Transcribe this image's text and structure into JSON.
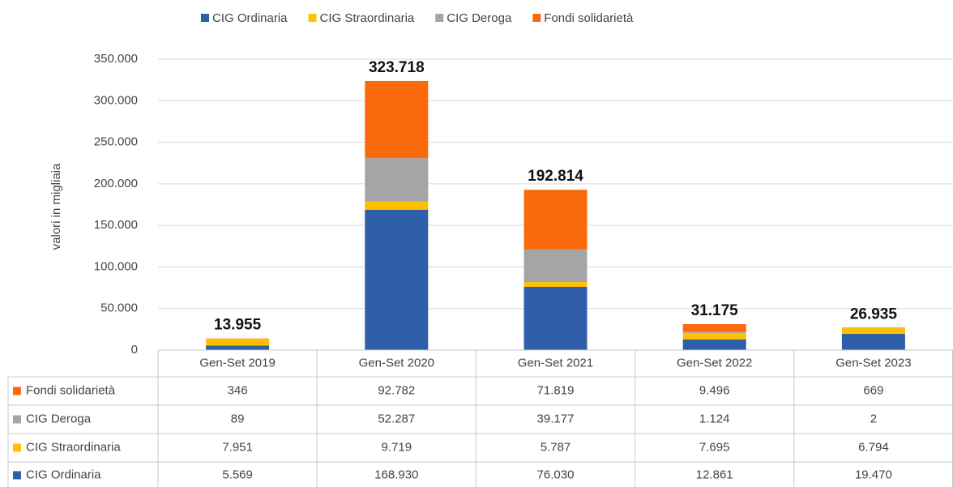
{
  "chart_data": {
    "type": "bar",
    "stacked": true,
    "y_label": "valori in migliaia",
    "categories": [
      "Gen-Set 2019",
      "Gen-Set 2020",
      "Gen-Set 2021",
      "Gen-Set 2022",
      "Gen-Set 2023"
    ],
    "series": [
      {
        "name": "CIG Ordinaria",
        "color": "#2e5fa8",
        "values": [
          5569,
          168930,
          76030,
          12861,
          19470
        ],
        "value_labels": [
          "5.569",
          "168.930",
          "76.030",
          "12.861",
          "19.470"
        ]
      },
      {
        "name": "CIG Straordinaria",
        "color": "#ffc000",
        "values": [
          7951,
          9719,
          5787,
          7695,
          6794
        ],
        "value_labels": [
          "7.951",
          "9.719",
          "5.787",
          "7.695",
          "6.794"
        ]
      },
      {
        "name": "CIG Deroga",
        "color": "#a5a5a5",
        "values": [
          89,
          52287,
          39177,
          1124,
          2
        ],
        "value_labels": [
          "89",
          "52.287",
          "39.177",
          "1.124",
          "2"
        ]
      },
      {
        "name": "Fondi solidarietà",
        "color": "#fa6a0a",
        "values": [
          346,
          92782,
          71819,
          9496,
          669
        ],
        "value_labels": [
          "346",
          "92.782",
          "71.819",
          "9.496",
          "669"
        ]
      }
    ],
    "totals": {
      "values": [
        13955,
        323718,
        192814,
        31175,
        26935
      ],
      "value_labels": [
        "13.955",
        "323.718",
        "192.814",
        "31.175",
        "26.935"
      ]
    },
    "ylim": [
      0,
      350000
    ],
    "yticks": [
      0,
      {
        "value": 50000,
        "label": "50.000"
      },
      {
        "value": 100000,
        "label": "100.000"
      },
      {
        "value": 150000,
        "label": "150.000"
      },
      {
        "value": 200000,
        "label": "200.000"
      },
      {
        "value": 250000,
        "label": "250.000"
      },
      {
        "value": 300000,
        "label": "300.000"
      },
      {
        "value": 350000,
        "label": "350.000"
      }
    ],
    "grid": true,
    "legend": "top"
  }
}
